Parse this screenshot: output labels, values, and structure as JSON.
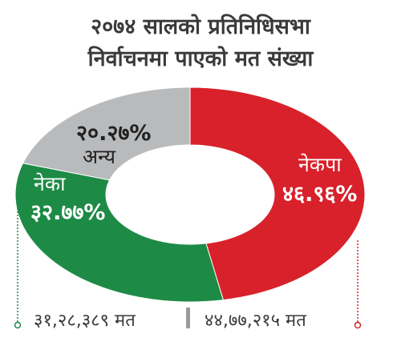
{
  "chart_data": {
    "type": "pie",
    "title_lines": [
      "२०७४ सालको प्रतिनिधिसभा",
      "निर्वाचनमा पाएको मत संख्या"
    ],
    "slices": [
      {
        "name": "नेकपा",
        "value": 46.96,
        "label": "४६.९६%",
        "color": "#d8212a"
      },
      {
        "name": "नेका",
        "value": 32.77,
        "label": "३२.७७%",
        "color": "#1d8a45"
      },
      {
        "name": "अन्य",
        "value": 20.27,
        "label": "२०.२७%",
        "color": "#b9babc"
      }
    ],
    "vote_counts": {
      "nepali_congress": "३१,२८,३८९ मत",
      "nekapa": "४४,७७,२१५ मत"
    }
  }
}
